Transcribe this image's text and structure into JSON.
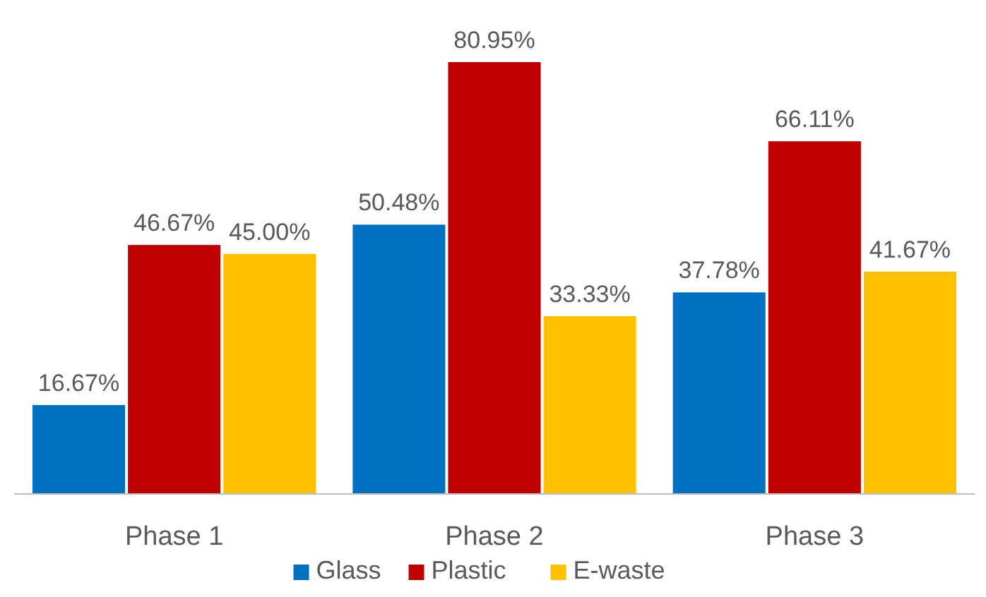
{
  "chart_data": {
    "type": "bar",
    "categories": [
      "Phase 1",
      "Phase 2",
      "Phase 3"
    ],
    "legend": "bottom",
    "series": [
      {
        "name": "Glass",
        "color": "#0070c0",
        "values": [
          16.67,
          50.48,
          37.78
        ],
        "value_labels": [
          "16.67%",
          "50.48%",
          "37.78%"
        ]
      },
      {
        "name": "Plastic",
        "color": "#c00000",
        "values": [
          46.67,
          80.95,
          66.11
        ],
        "value_labels": [
          "46.67%",
          "80.95%",
          "66.11%"
        ]
      },
      {
        "name": "E-waste",
        "color": "#ffc000",
        "values": [
          45.0,
          33.33,
          41.67
        ],
        "value_labels": [
          "45.00%",
          "33.33%",
          "41.67%"
        ]
      }
    ]
  }
}
